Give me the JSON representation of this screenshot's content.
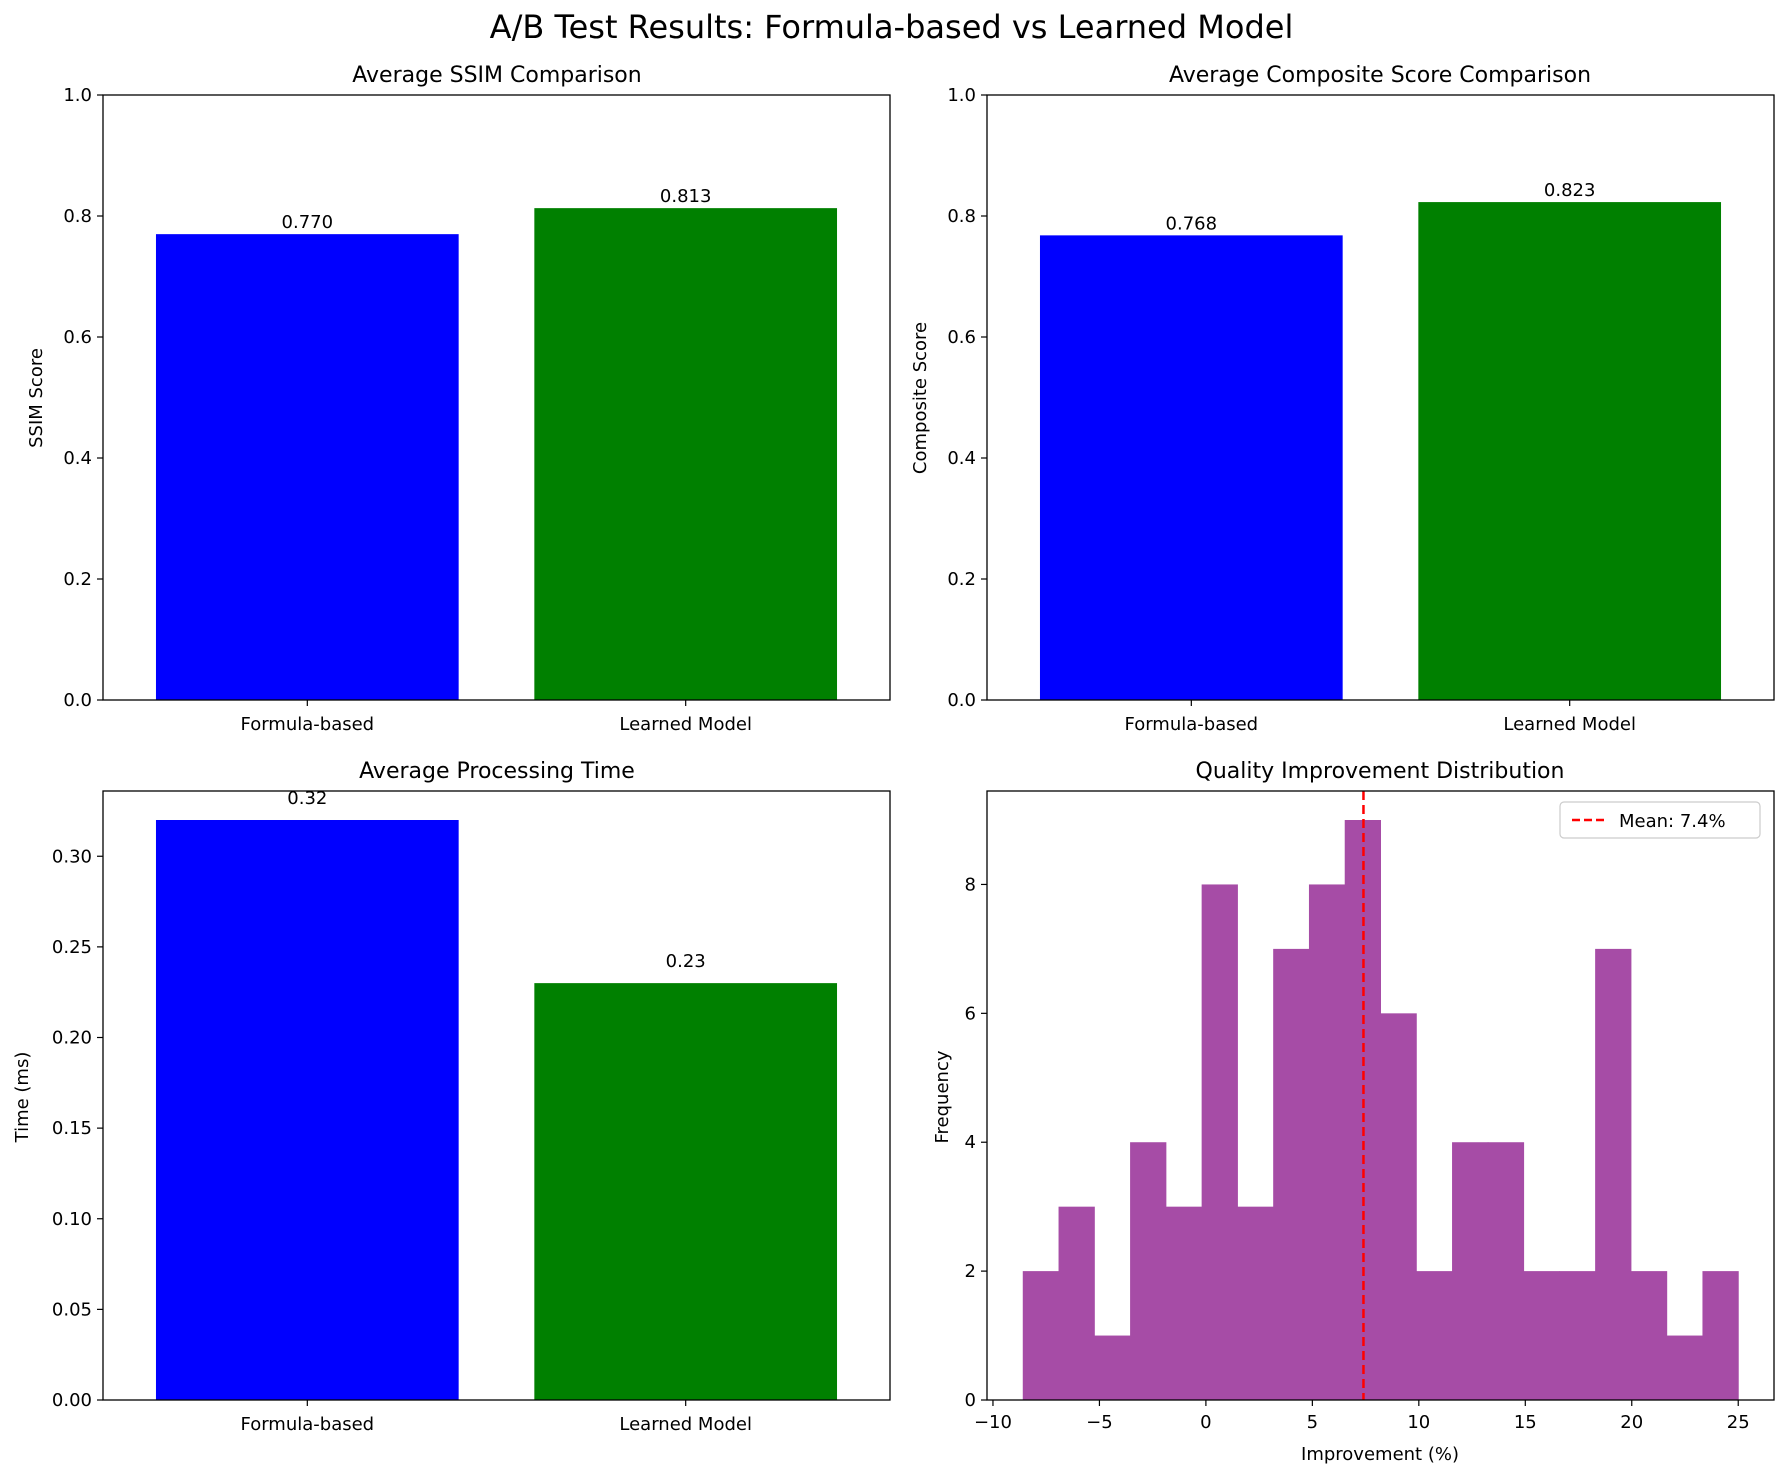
{
  "suptitle": "A/B Test Results: Formula-based vs Learned Model",
  "colors": {
    "formula": "#0000ff",
    "learned": "#008000",
    "hist": "#a64ca6",
    "mean_line": "#ff0000"
  },
  "chart_data": [
    {
      "type": "bar",
      "title": "Average SSIM Comparison",
      "xlabel": "",
      "ylabel": "SSIM Score",
      "categories": [
        "Formula-based",
        "Learned Model"
      ],
      "values": [
        0.77,
        0.813
      ],
      "data_labels": [
        "0.770",
        "0.813"
      ],
      "ylim": [
        0,
        1.0
      ],
      "yticks": [
        "0.0",
        "0.2",
        "0.4",
        "0.6",
        "0.8",
        "1.0"
      ],
      "ytick_values": [
        0,
        0.2,
        0.4,
        0.6,
        0.8,
        1.0
      ],
      "grid": false
    },
    {
      "type": "bar",
      "title": "Average Composite Score Comparison",
      "xlabel": "",
      "ylabel": "Composite Score",
      "categories": [
        "Formula-based",
        "Learned Model"
      ],
      "values": [
        0.768,
        0.823
      ],
      "data_labels": [
        "0.768",
        "0.823"
      ],
      "ylim": [
        0,
        1.0
      ],
      "yticks": [
        "0.0",
        "0.2",
        "0.4",
        "0.6",
        "0.8",
        "1.0"
      ],
      "ytick_values": [
        0,
        0.2,
        0.4,
        0.6,
        0.8,
        1.0
      ],
      "grid": false
    },
    {
      "type": "bar",
      "title": "Average Processing Time",
      "xlabel": "",
      "ylabel": "Time (ms)",
      "categories": [
        "Formula-based",
        "Learned Model"
      ],
      "values": [
        0.32,
        0.23
      ],
      "data_labels": [
        "0.32",
        "0.23"
      ],
      "ylim": [
        0,
        0.336
      ],
      "yticks": [
        "0.00",
        "0.05",
        "0.10",
        "0.15",
        "0.20",
        "0.25",
        "0.30"
      ],
      "ytick_values": [
        0,
        0.05,
        0.1,
        0.15,
        0.2,
        0.25,
        0.3
      ],
      "grid": false
    },
    {
      "type": "histogram",
      "title": "Quality Improvement Distribution",
      "xlabel": "Improvement (%)",
      "ylabel": "Frequency",
      "bin_edges": [
        -8.6,
        -6.92,
        -5.24,
        -3.56,
        -1.88,
        -0.2,
        1.48,
        3.16,
        4.84,
        6.52,
        8.2,
        9.88,
        11.56,
        13.24,
        14.92,
        16.6,
        18.28,
        19.96,
        21.64,
        23.32,
        25.0
      ],
      "counts": [
        2,
        3,
        1,
        4,
        3,
        8,
        3,
        7,
        8,
        9,
        6,
        2,
        4,
        4,
        2,
        2,
        7,
        2,
        1,
        2
      ],
      "xlim": [
        -10.28,
        26.68
      ],
      "ylim": [
        0,
        9.45
      ],
      "xticks": [
        "−10",
        "−5",
        "0",
        "5",
        "10",
        "15",
        "20",
        "25"
      ],
      "xtick_values": [
        -10,
        -5,
        0,
        5,
        10,
        15,
        20,
        25
      ],
      "yticks": [
        "0",
        "2",
        "4",
        "6",
        "8"
      ],
      "ytick_values": [
        0,
        2,
        4,
        6,
        8
      ],
      "mean_value": 7.4,
      "legend_label": "Mean: 7.4%",
      "legend_position": "upper right",
      "grid": false
    }
  ]
}
